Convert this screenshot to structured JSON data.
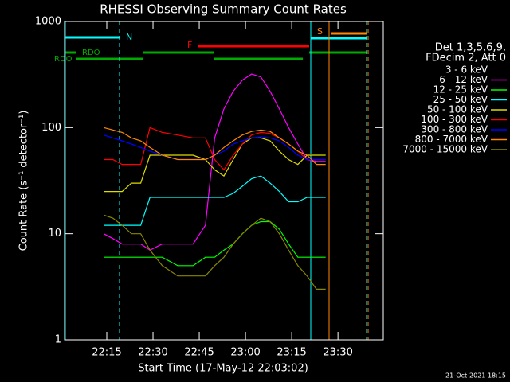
{
  "chart_data": {
    "type": "line",
    "title": "RHESSI Observing Summary Count Rates",
    "xlabel": "Start Time (17-May-12 22:03:02)",
    "ylabel": "Count Rate (s⁻¹ detector⁻¹)",
    "legend_header": [
      "Det 1,3,5,6,9,",
      "FDecim 2, Att 0"
    ],
    "footer": "21-Oct-2021 18:15",
    "log_y": true,
    "xlim": [
      1.3,
      104.7
    ],
    "xticks": [
      {
        "value": 15,
        "label": "22:15"
      },
      {
        "value": 30,
        "label": "22:30"
      },
      {
        "value": 45,
        "label": "22:45"
      },
      {
        "value": 60,
        "label": "23:00"
      },
      {
        "value": 75,
        "label": "23:15"
      },
      {
        "value": 90,
        "label": "23:30"
      }
    ],
    "ylim": [
      1,
      1000
    ],
    "yticks": [
      1,
      10,
      100,
      1000
    ],
    "annotations": [
      {
        "text": "N",
        "color": "#00ffff"
      },
      {
        "text": "F",
        "color": "#ff0000"
      },
      {
        "text": "S",
        "color": "#ff8800"
      },
      {
        "text": "RDO",
        "color": "#00aa00"
      },
      {
        "text": "RDO",
        "color": "#00aa00"
      }
    ],
    "x": [
      14,
      17,
      20,
      23,
      26,
      29,
      33,
      38,
      43,
      47,
      50,
      53,
      56,
      59,
      62,
      65,
      68,
      71,
      74,
      77,
      80,
      83,
      86
    ],
    "series": [
      {
        "name": "3 - 6 keV",
        "color": "#000000",
        "values": [
          2.5,
          2.5,
          8,
          8,
          7,
          7,
          7,
          7,
          7,
          9,
          50,
          120,
          200,
          260,
          300,
          280,
          220,
          170,
          140,
          110,
          60,
          50,
          50
        ]
      },
      {
        "name": "6 - 12 keV",
        "color": "#ff00ff",
        "values": [
          10,
          9,
          8,
          8,
          8,
          7,
          8,
          8,
          8,
          12,
          80,
          150,
          220,
          280,
          320,
          300,
          220,
          150,
          100,
          70,
          50,
          48,
          48
        ]
      },
      {
        "name": "12 - 25 keV",
        "color": "#00ff00",
        "values": [
          6,
          6,
          6,
          6,
          6,
          6,
          6,
          5,
          5,
          6,
          6,
          7,
          8,
          10,
          12,
          13,
          13,
          11,
          8,
          6,
          6,
          6,
          6
        ]
      },
      {
        "name": "25 - 50 keV",
        "color": "#00ffff",
        "values": [
          12,
          12,
          12,
          12,
          12,
          22,
          22,
          22,
          22,
          22,
          22,
          22,
          24,
          28,
          33,
          35,
          30,
          25,
          20,
          20,
          22,
          22,
          22
        ]
      },
      {
        "name": "50 - 100 keV",
        "color": "#dddd00",
        "values": [
          25,
          25,
          25,
          30,
          30,
          55,
          55,
          55,
          55,
          50,
          40,
          35,
          50,
          70,
          80,
          80,
          75,
          60,
          50,
          45,
          55,
          55,
          55
        ]
      },
      {
        "name": "100 - 300 keV",
        "color": "#ff0000",
        "values": [
          50,
          50,
          45,
          45,
          45,
          100,
          90,
          85,
          80,
          80,
          50,
          40,
          55,
          70,
          85,
          90,
          88,
          80,
          70,
          60,
          50,
          50,
          50
        ]
      },
      {
        "name": "300 - 800 keV",
        "color": "#0000ff",
        "values": [
          85,
          80,
          75,
          70,
          65,
          60,
          55,
          50,
          50,
          50,
          55,
          60,
          70,
          75,
          80,
          82,
          80,
          75,
          65,
          55,
          50,
          50,
          50
        ]
      },
      {
        "name": "800 - 7000 keV",
        "color": "#ff8800",
        "values": [
          100,
          95,
          90,
          80,
          75,
          65,
          55,
          50,
          50,
          50,
          55,
          65,
          75,
          85,
          92,
          95,
          92,
          80,
          70,
          60,
          55,
          45,
          45
        ]
      },
      {
        "name": "7000 - 15000 keV",
        "color": "#888800",
        "values": [
          15,
          14,
          12,
          10,
          10,
          7,
          5,
          4,
          4,
          4,
          5,
          6,
          8,
          10,
          12,
          14,
          13,
          10,
          7,
          5,
          4,
          3,
          3
        ]
      }
    ]
  }
}
